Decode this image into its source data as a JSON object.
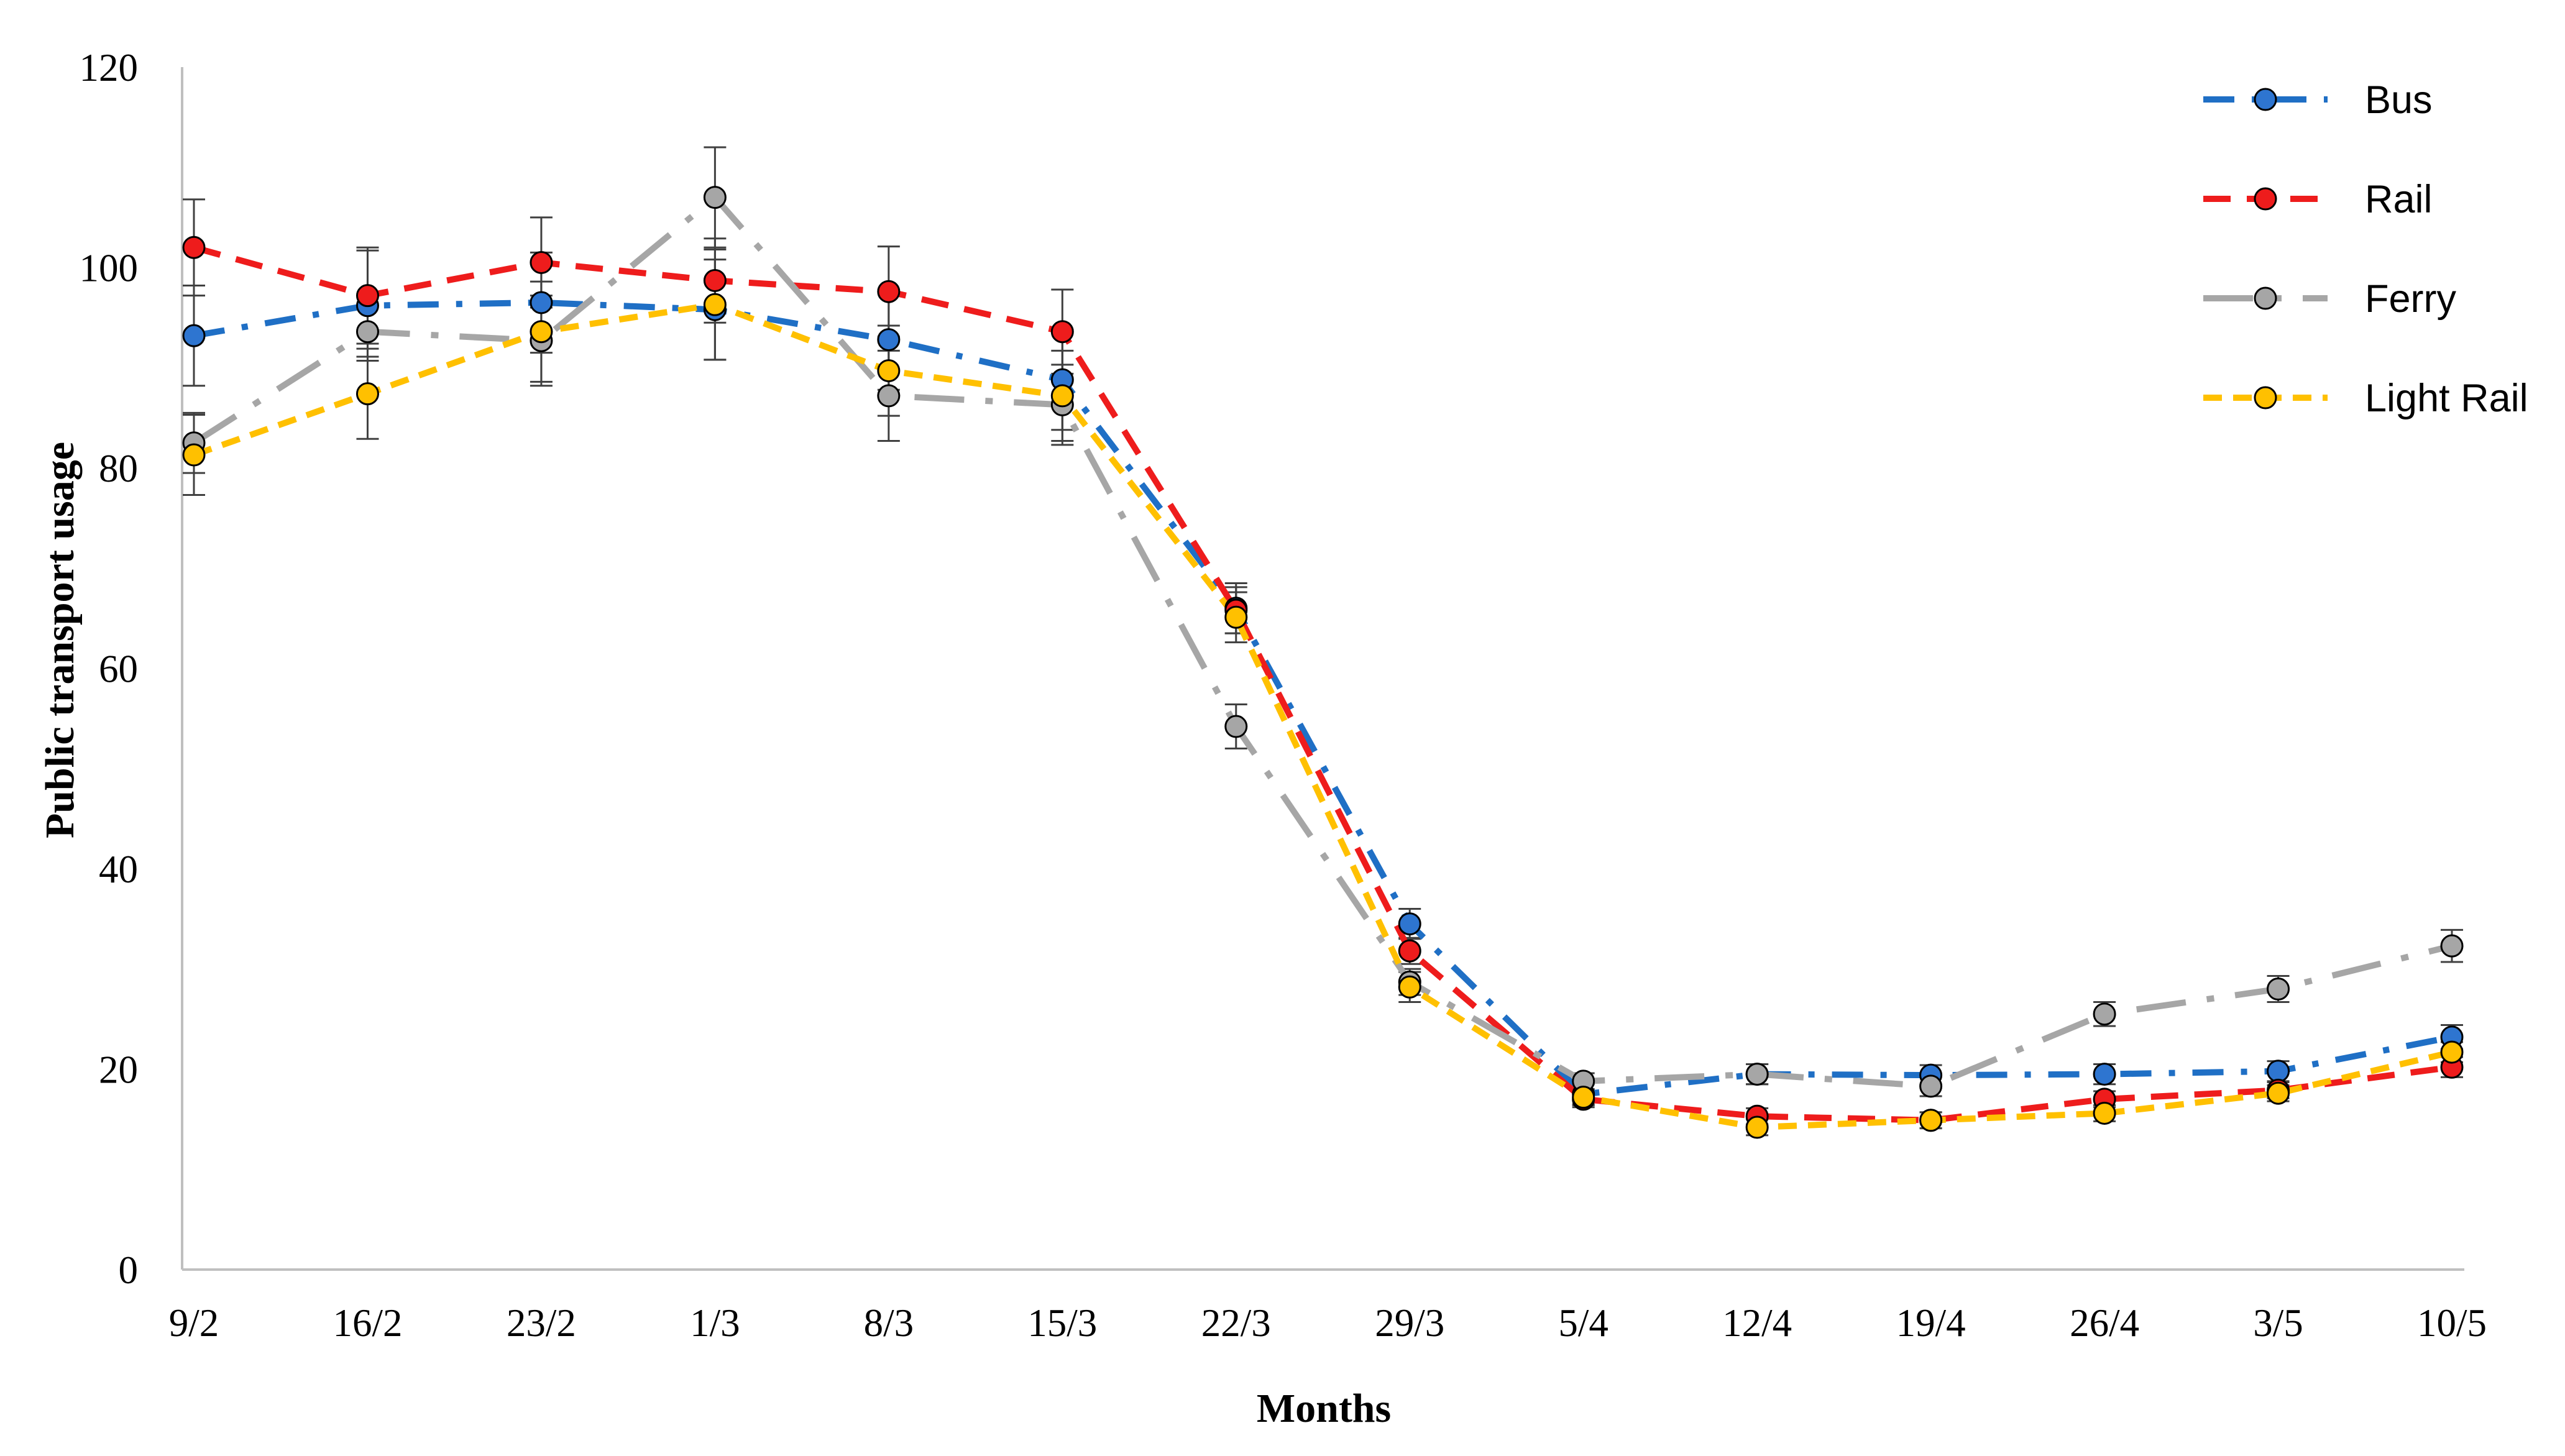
{
  "chart_data": {
    "type": "line",
    "title": "",
    "xlabel": "Months",
    "ylabel": "Public transport usage",
    "ylim": [
      0,
      120
    ],
    "yticks": [
      0,
      20,
      40,
      60,
      80,
      100,
      120
    ],
    "grid": false,
    "legend_position": "top-right",
    "categories": [
      "9/2",
      "16/2",
      "23/2",
      "1/3",
      "8/3",
      "15/3",
      "22/3",
      "29/3",
      "5/4",
      "12/4",
      "19/4",
      "26/4",
      "3/5",
      "10/5"
    ],
    "series": [
      {
        "name": "Bus",
        "color": "#1F6FC5",
        "marker_color": "#2E75D0",
        "dash": "dash-dot",
        "values": [
          93.2,
          96.2,
          96.5,
          95.8,
          92.8,
          88.8,
          66.0,
          34.5,
          17.5,
          19.5,
          19.4,
          19.5,
          19.8,
          23.2
        ],
        "errors": [
          5.0,
          5.5,
          5.0,
          5.0,
          5.0,
          5.0,
          2.5,
          1.5,
          1.0,
          1.0,
          1.0,
          1.0,
          1.0,
          1.2
        ]
      },
      {
        "name": "Rail",
        "color": "#EE1C1C",
        "marker_color": "#EE1C1C",
        "dash": "dash",
        "values": [
          102.0,
          97.2,
          100.5,
          98.7,
          97.6,
          93.6,
          65.8,
          31.8,
          17.0,
          15.3,
          14.9,
          17.0,
          17.9,
          20.2
        ],
        "errors": [
          4.8,
          4.8,
          4.5,
          4.2,
          4.5,
          4.2,
          2.3,
          1.3,
          0.8,
          0.8,
          0.8,
          0.8,
          0.8,
          1.0
        ]
      },
      {
        "name": "Ferry",
        "color": "#A6A6A6",
        "marker_color": "#A6A6A6",
        "dash": "long-dash-dot",
        "values": [
          82.5,
          93.6,
          92.7,
          107.0,
          87.2,
          86.3,
          54.2,
          28.7,
          18.8,
          19.5,
          18.3,
          25.5,
          28.0,
          32.3
        ],
        "errors": [
          3.0,
          2.5,
          4.5,
          5.0,
          4.5,
          4.0,
          2.2,
          1.3,
          0.8,
          1.0,
          1.0,
          1.2,
          1.3,
          1.6
        ]
      },
      {
        "name": "Light Rail",
        "color": "#FFC000",
        "marker_color": "#FFC000",
        "dash": "short-dash",
        "values": [
          81.3,
          87.4,
          93.6,
          96.3,
          89.7,
          87.2,
          65.1,
          28.2,
          17.2,
          14.2,
          14.9,
          15.6,
          17.6,
          21.7
        ],
        "errors": [
          4.0,
          4.5,
          5.0,
          5.5,
          4.5,
          4.5,
          2.5,
          1.5,
          0.8,
          0.8,
          0.8,
          0.8,
          0.8,
          1.0
        ]
      }
    ]
  }
}
